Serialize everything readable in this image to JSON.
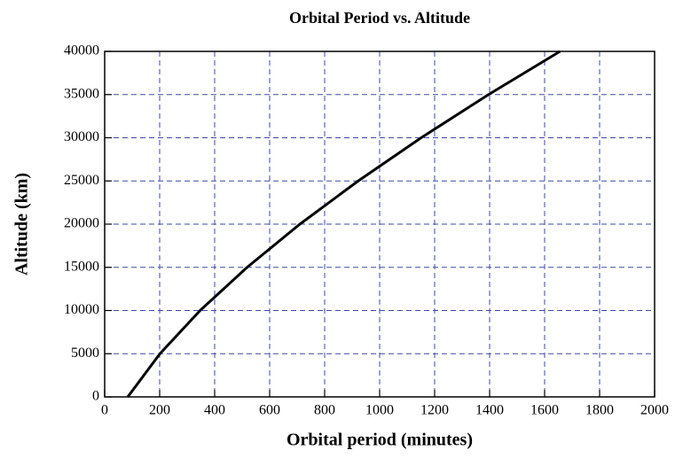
{
  "chart_data": {
    "type": "line",
    "title": "Orbital Period vs. Altitude",
    "xlabel": "Orbital period (minutes)",
    "ylabel": "Altitude (km)",
    "x": [
      84,
      201,
      347,
      518,
      710,
      922,
      1151,
      1396,
      1656
    ],
    "series": [
      {
        "name": "Altitude",
        "color": "#000000",
        "values": [
          0,
          5000,
          10000,
          15000,
          20000,
          25000,
          30000,
          35000,
          40000
        ]
      }
    ],
    "xlim": [
      0,
      2000
    ],
    "xticks": [
      0,
      200,
      400,
      600,
      800,
      1000,
      1200,
      1400,
      1600,
      1800,
      2000
    ],
    "ylim": [
      0,
      40000
    ],
    "yticks": [
      0,
      5000,
      10000,
      15000,
      20000,
      25000,
      30000,
      35000,
      40000
    ],
    "grid": true
  }
}
